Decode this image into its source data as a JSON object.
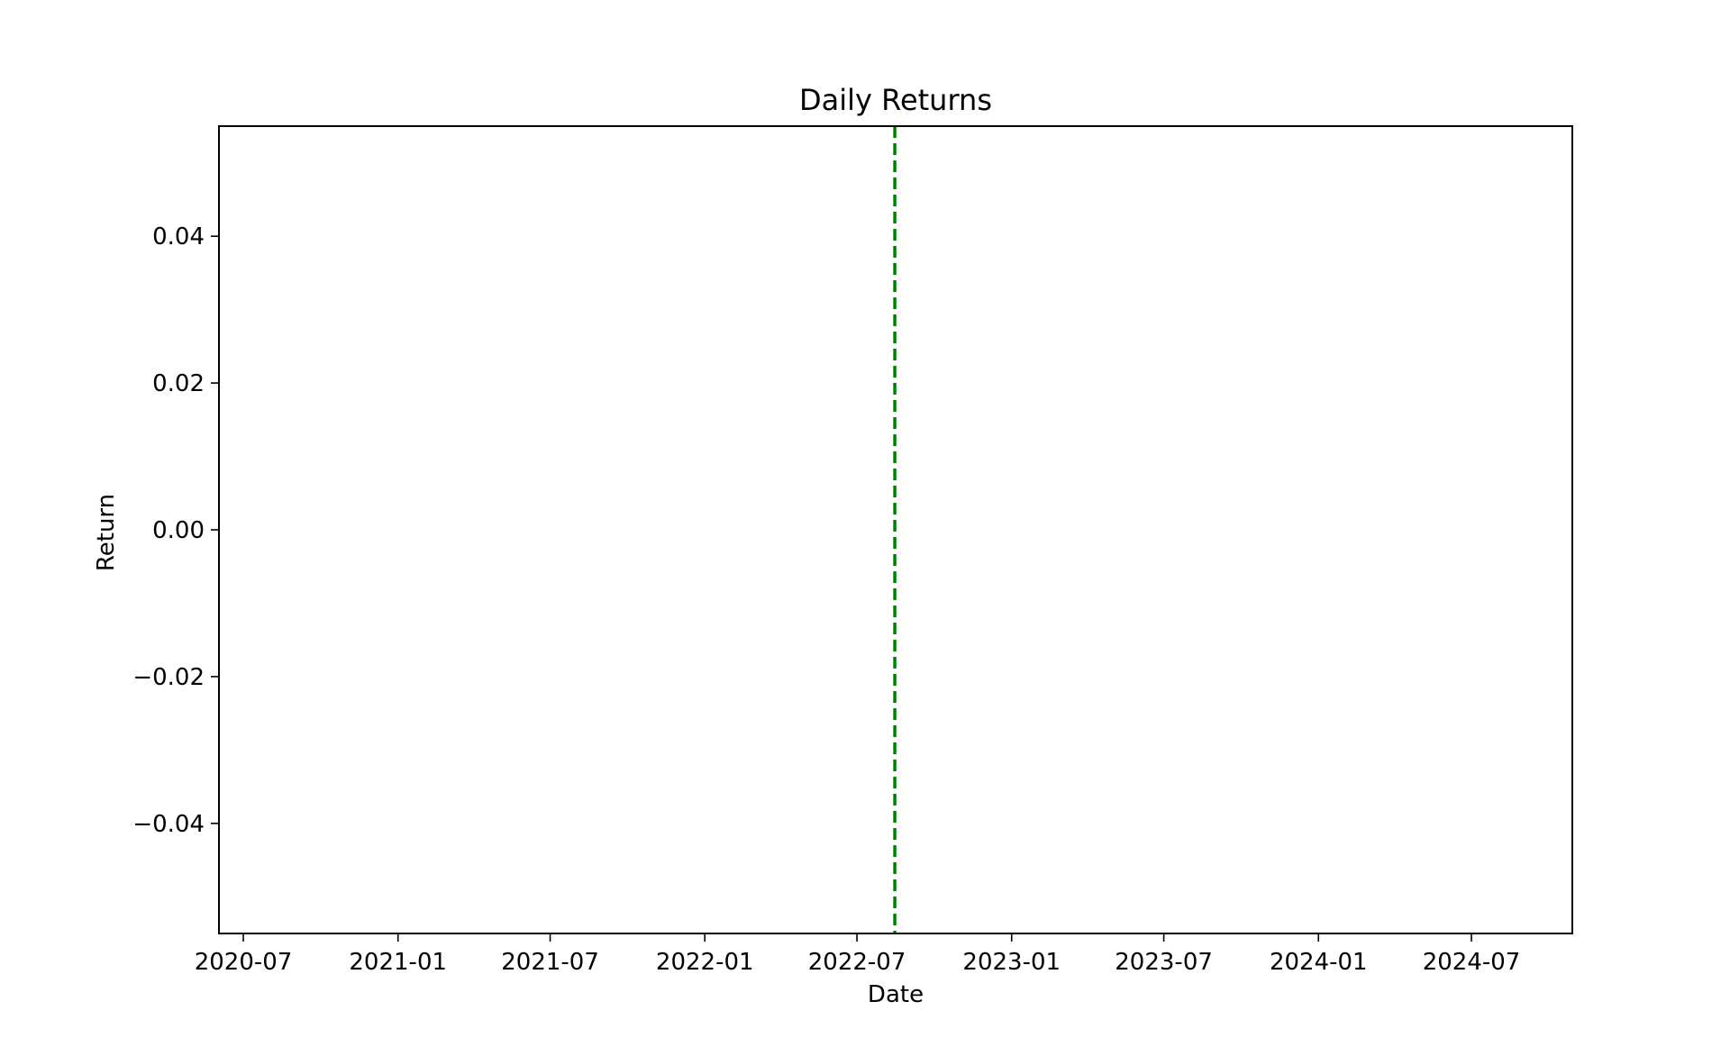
{
  "chart_data": {
    "type": "line",
    "title": "Daily Returns",
    "xlabel": "Date",
    "ylabel": "Return",
    "x_axis": {
      "kind": "date",
      "range": [
        "2020-06-02",
        "2024-10-29"
      ],
      "ticks": [
        {
          "date": "2020-07-01",
          "label": "2020-07"
        },
        {
          "date": "2021-01-01",
          "label": "2021-01"
        },
        {
          "date": "2021-07-01",
          "label": "2021-07"
        },
        {
          "date": "2022-01-01",
          "label": "2022-01"
        },
        {
          "date": "2022-07-01",
          "label": "2022-07"
        },
        {
          "date": "2023-01-01",
          "label": "2023-01"
        },
        {
          "date": "2023-07-01",
          "label": "2023-07"
        },
        {
          "date": "2024-01-01",
          "label": "2024-01"
        },
        {
          "date": "2024-07-01",
          "label": "2024-07"
        }
      ]
    },
    "y_axis": {
      "range": [
        -0.055,
        0.055
      ],
      "ticks": [
        {
          "value": 0.04,
          "label": "0.04"
        },
        {
          "value": 0.02,
          "label": "0.02"
        },
        {
          "value": 0.0,
          "label": "0.00"
        },
        {
          "value": -0.02,
          "label": "−0.02"
        },
        {
          "value": -0.04,
          "label": "−0.04"
        }
      ]
    },
    "series": [],
    "vlines": [
      {
        "date": "2022-08-15",
        "style": "dashed",
        "color": "#008000"
      }
    ],
    "grid": false,
    "legend": "none"
  }
}
